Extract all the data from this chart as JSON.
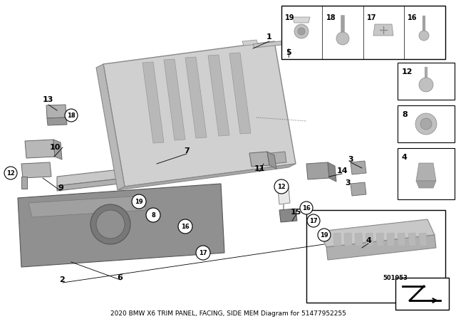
{
  "title": "2020 BMW X6 TRIM PANEL, FACING, SIDE MEM Diagram for 51477952255",
  "background_color": "#ffffff",
  "border_color": "#000000",
  "diagram_number": "501953",
  "fig_width": 6.4,
  "fig_height": 4.48,
  "dpi": 100
}
